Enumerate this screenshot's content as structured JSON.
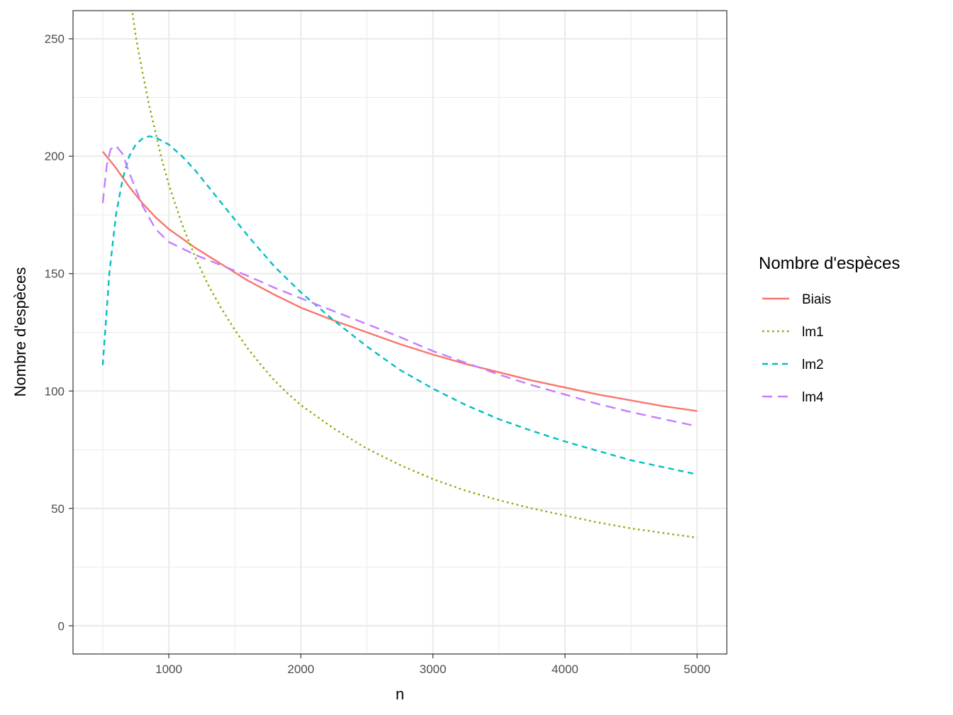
{
  "chart_data": {
    "type": "line",
    "xlabel": "n",
    "ylabel": "Nombre d'espèces",
    "xlim": [
      275,
      5225
    ],
    "ylim": [
      -12,
      262
    ],
    "x_ticks": [
      1000,
      2000,
      3000,
      4000,
      5000
    ],
    "x_minor": [
      500,
      1500,
      2500,
      3500,
      4500
    ],
    "y_ticks": [
      0,
      50,
      100,
      150,
      200,
      250
    ],
    "y_minor": [
      25,
      75,
      125,
      175,
      225
    ],
    "x_tick_labels": [
      "1000",
      "2000",
      "3000",
      "4000",
      "5000"
    ],
    "y_tick_labels": [
      "0",
      "50",
      "100",
      "150",
      "200",
      "250"
    ],
    "grid": true,
    "legend": {
      "title": "Nombre d'espèces",
      "position": "right"
    },
    "series": [
      {
        "name": "Biais",
        "color": "#F8766D",
        "dash": "solid",
        "points": [
          [
            500,
            202
          ],
          [
            600,
            195
          ],
          [
            700,
            187
          ],
          [
            800,
            180
          ],
          [
            900,
            174
          ],
          [
            1000,
            169
          ],
          [
            1200,
            161
          ],
          [
            1400,
            154
          ],
          [
            1600,
            147
          ],
          [
            1800,
            141
          ],
          [
            2000,
            135.5
          ],
          [
            2250,
            130
          ],
          [
            2500,
            125
          ],
          [
            2750,
            120
          ],
          [
            3000,
            115.5
          ],
          [
            3250,
            111.5
          ],
          [
            3500,
            108
          ],
          [
            3750,
            104.5
          ],
          [
            4000,
            101.5
          ],
          [
            4250,
            98.5
          ],
          [
            4500,
            96
          ],
          [
            4750,
            93.5
          ],
          [
            5000,
            91.5
          ]
        ]
      },
      {
        "name": "lm1",
        "color": "#7CAE00",
        "dash": "dotted",
        "points": [
          [
            720,
            263
          ],
          [
            750,
            251
          ],
          [
            800,
            236
          ],
          [
            850,
            222
          ],
          [
            900,
            210
          ],
          [
            950,
            198
          ],
          [
            1000,
            188
          ],
          [
            1100,
            171
          ],
          [
            1200,
            157
          ],
          [
            1300,
            145
          ],
          [
            1400,
            135
          ],
          [
            1500,
            126
          ],
          [
            1600,
            118
          ],
          [
            1700,
            111
          ],
          [
            1800,
            104.5
          ],
          [
            1900,
            99
          ],
          [
            2000,
            94
          ],
          [
            2250,
            84
          ],
          [
            2500,
            75.5
          ],
          [
            2750,
            68.5
          ],
          [
            3000,
            62.5
          ],
          [
            3250,
            57.5
          ],
          [
            3500,
            53.5
          ],
          [
            3750,
            50
          ],
          [
            4000,
            47
          ],
          [
            4250,
            44
          ],
          [
            4500,
            41.5
          ],
          [
            4750,
            39.5
          ],
          [
            5000,
            37.5
          ]
        ]
      },
      {
        "name": "lm2",
        "color": "#00BFC4",
        "dash": "dashed",
        "points": [
          [
            500,
            111
          ],
          [
            550,
            150
          ],
          [
            600,
            175
          ],
          [
            650,
            190
          ],
          [
            700,
            200
          ],
          [
            750,
            205
          ],
          [
            800,
            207.5
          ],
          [
            850,
            208.5
          ],
          [
            900,
            208
          ],
          [
            1000,
            205
          ],
          [
            1100,
            200
          ],
          [
            1200,
            194
          ],
          [
            1400,
            180
          ],
          [
            1600,
            166
          ],
          [
            1800,
            153
          ],
          [
            2000,
            142
          ],
          [
            2250,
            130
          ],
          [
            2500,
            119
          ],
          [
            2750,
            109
          ],
          [
            3000,
            101
          ],
          [
            3250,
            94
          ],
          [
            3500,
            88
          ],
          [
            3750,
            83
          ],
          [
            4000,
            78.5
          ],
          [
            4250,
            74.5
          ],
          [
            4500,
            70.5
          ],
          [
            4750,
            67.5
          ],
          [
            5000,
            64.5
          ]
        ]
      },
      {
        "name": "lm4",
        "color": "#C77CFF",
        "dash": "longdash",
        "points": [
          [
            500,
            180
          ],
          [
            530,
            196
          ],
          [
            560,
            203
          ],
          [
            600,
            204.5
          ],
          [
            650,
            201
          ],
          [
            700,
            193
          ],
          [
            800,
            179
          ],
          [
            900,
            169
          ],
          [
            1000,
            163.5
          ],
          [
            1200,
            158
          ],
          [
            1400,
            153.5
          ],
          [
            1600,
            149
          ],
          [
            1800,
            144
          ],
          [
            2000,
            139.5
          ],
          [
            2250,
            134
          ],
          [
            2500,
            128.5
          ],
          [
            2750,
            123
          ],
          [
            3000,
            117
          ],
          [
            3250,
            112
          ],
          [
            3500,
            107
          ],
          [
            3750,
            102.5
          ],
          [
            4000,
            98.5
          ],
          [
            4250,
            94.5
          ],
          [
            4500,
            91
          ],
          [
            4750,
            88
          ],
          [
            5000,
            85
          ]
        ]
      }
    ]
  }
}
